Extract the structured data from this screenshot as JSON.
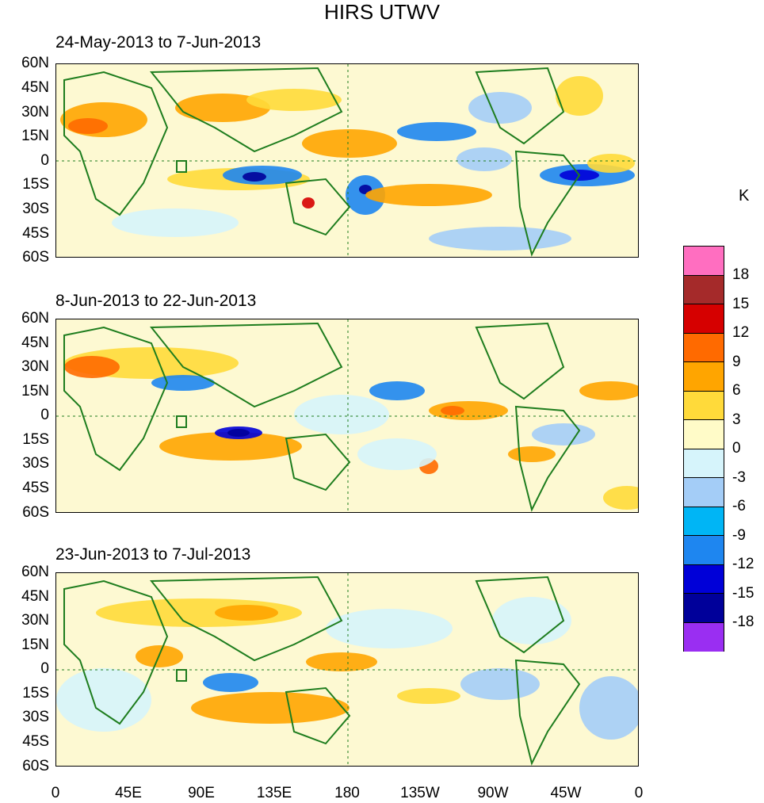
{
  "title": "HIRS UTWV",
  "panels": [
    {
      "label": "24-May-2013 to 7-Jun-2013"
    },
    {
      "label": "8-Jun-2013 to 22-Jun-2013"
    },
    {
      "label": "23-Jun-2013 to 7-Jul-2013"
    }
  ],
  "lat_labels": [
    "60N",
    "45N",
    "30N",
    "15N",
    "0",
    "15S",
    "30S",
    "45S",
    "60S"
  ],
  "lon_labels": [
    "0",
    "45E",
    "90E",
    "135E",
    "180",
    "135W",
    "90W",
    "45W",
    "0"
  ],
  "colorbar": {
    "unit": "K",
    "labels": [
      "18",
      "15",
      "12",
      "9",
      "6",
      "3",
      "0",
      "-3",
      "-6",
      "-9",
      "-12",
      "-15",
      "-18"
    ],
    "colors": [
      "#ff6ec0",
      "#a52a2a",
      "#d60000",
      "#ff6a00",
      "#ffa500",
      "#ffda3a",
      "#fffbc8",
      "#d6f4fb",
      "#a4cdf7",
      "#00b5f5",
      "#1e86f0",
      "#0000d8",
      "#00009a",
      "#9a2ef2"
    ]
  },
  "map_colors": {
    "background": "#fdf9d2",
    "coast": "#1e7d1e"
  }
}
